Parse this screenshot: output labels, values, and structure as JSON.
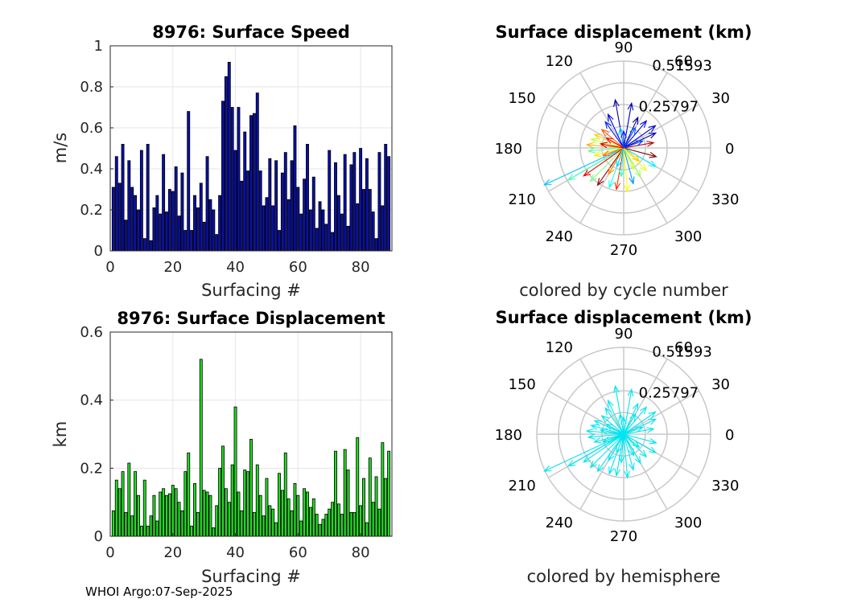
{
  "figure_note": "WHOI Argo:07-Sep-2025",
  "chart_data": [
    {
      "type": "bar",
      "title": "8976: Surface Speed",
      "xlabel": "Surfacing #",
      "ylabel": "m/s",
      "xlim": [
        0,
        90
      ],
      "ylim": [
        0,
        1
      ],
      "xticks": [
        "0",
        "20",
        "40",
        "60",
        "80"
      ],
      "yticks": [
        "0",
        "0.2",
        "0.4",
        "0.6",
        "0.8",
        "1"
      ],
      "bar_color": "#0a10a8",
      "x": [
        1,
        2,
        3,
        4,
        5,
        6,
        7,
        8,
        9,
        10,
        11,
        12,
        13,
        14,
        15,
        16,
        17,
        18,
        19,
        20,
        21,
        22,
        23,
        24,
        25,
        26,
        27,
        28,
        29,
        30,
        31,
        32,
        33,
        34,
        35,
        36,
        37,
        38,
        39,
        40,
        41,
        42,
        43,
        44,
        45,
        46,
        47,
        48,
        49,
        50,
        51,
        52,
        53,
        54,
        55,
        56,
        57,
        58,
        59,
        60,
        61,
        62,
        63,
        64,
        65,
        66,
        67,
        68,
        69,
        70,
        71,
        72,
        73,
        74,
        75,
        76,
        77,
        78,
        79,
        80,
        81,
        82,
        83,
        84,
        85,
        86,
        87,
        88,
        89
      ],
      "values": [
        0.31,
        0.46,
        0.33,
        0.52,
        0.15,
        0.44,
        0.31,
        0.27,
        0.2,
        0.49,
        0.06,
        0.52,
        0.05,
        0.21,
        0.27,
        0.18,
        0.47,
        0.19,
        0.3,
        0.29,
        0.41,
        0.17,
        0.38,
        0.1,
        0.68,
        0.1,
        0.27,
        0.21,
        0.33,
        0.14,
        0.46,
        0.25,
        0.2,
        0.08,
        0.27,
        0.73,
        0.85,
        0.92,
        0.7,
        0.49,
        0.7,
        0.34,
        0.58,
        0.39,
        0.66,
        0.67,
        0.77,
        0.39,
        0.22,
        0.26,
        0.45,
        0.22,
        0.44,
        0.1,
        0.38,
        0.48,
        0.25,
        0.44,
        0.61,
        0.31,
        0.18,
        0.35,
        0.52,
        0.2,
        0.36,
        0.11,
        0.24,
        0.2,
        0.13,
        0.49,
        0.09,
        0.43,
        0.27,
        0.18,
        0.47,
        0.12,
        0.42,
        0.48,
        0.23,
        0.5,
        0.3,
        0.45,
        0.3,
        0.19,
        0.06,
        0.48,
        0.22,
        0.52,
        0.46
      ]
    },
    {
      "type": "bar",
      "title": "8976: Surface Displacement",
      "xlabel": "Surfacing #",
      "ylabel": "km",
      "xlim": [
        0,
        90
      ],
      "ylim": [
        0,
        0.6
      ],
      "xticks": [
        "0",
        "20",
        "40",
        "60",
        "80"
      ],
      "yticks": [
        "0",
        "0.2",
        "0.4",
        "0.6"
      ],
      "bar_color": "#22dd22",
      "x": [
        1,
        2,
        3,
        4,
        5,
        6,
        7,
        8,
        9,
        10,
        11,
        12,
        13,
        14,
        15,
        16,
        17,
        18,
        19,
        20,
        21,
        22,
        23,
        24,
        25,
        26,
        27,
        28,
        29,
        30,
        31,
        32,
        33,
        34,
        35,
        36,
        37,
        38,
        39,
        40,
        41,
        42,
        43,
        44,
        45,
        46,
        47,
        48,
        49,
        50,
        51,
        52,
        53,
        54,
        55,
        56,
        57,
        58,
        59,
        60,
        61,
        62,
        63,
        64,
        65,
        66,
        67,
        68,
        69,
        70,
        71,
        72,
        73,
        74,
        75,
        76,
        77,
        78,
        79,
        80,
        81,
        82,
        83,
        84,
        85,
        86,
        87,
        88,
        89
      ],
      "values": [
        0.075,
        0.165,
        0.14,
        0.19,
        0.07,
        0.215,
        0.06,
        0.19,
        0.12,
        0.03,
        0.165,
        0.03,
        0.06,
        0.12,
        0.045,
        0.13,
        0.14,
        0.12,
        0.125,
        0.15,
        0.14,
        0.1,
        0.075,
        0.19,
        0.245,
        0.03,
        0.155,
        0.07,
        0.52,
        0.135,
        0.13,
        0.12,
        0.025,
        0.09,
        0.2,
        0.265,
        0.14,
        0.1,
        0.21,
        0.38,
        0.13,
        0.075,
        0.195,
        0.19,
        0.285,
        0.07,
        0.21,
        0.12,
        0.06,
        0.17,
        0.09,
        0.08,
        0.04,
        0.185,
        0.135,
        0.245,
        0.11,
        0.075,
        0.155,
        0.12,
        0.045,
        0.14,
        0.13,
        0.085,
        0.11,
        0.065,
        0.035,
        0.05,
        0.065,
        0.08,
        0.1,
        0.25,
        0.095,
        0.065,
        0.255,
        0.195,
        0.07,
        0.07,
        0.29,
        0.09,
        0.17,
        0.04,
        0.23,
        0.1,
        0.175,
        0.08,
        0.275,
        0.17,
        0.25
      ]
    },
    {
      "type": "polar",
      "title": "Surface displacement (km)",
      "subtitle": "colored by cycle number",
      "radial_ticks": [
        "0.25797",
        "0.51593"
      ],
      "radial_max": 0.516,
      "angle_ticks": [
        "0",
        "30",
        "60",
        "90",
        "120",
        "150",
        "180",
        "210",
        "240",
        "270",
        "300",
        "330"
      ],
      "color_scheme": "jet by cycle number",
      "vectors": [
        {
          "angle": 205,
          "r": 0.52,
          "cycle": 29
        },
        {
          "angle": 210,
          "r": 0.38,
          "cycle": 40
        },
        {
          "angle": 215,
          "r": 0.29,
          "cycle": 79
        },
        {
          "angle": 225,
          "r": 0.28,
          "cycle": 45
        },
        {
          "angle": 235,
          "r": 0.27,
          "cycle": 87
        },
        {
          "angle": 250,
          "r": 0.25,
          "cycle": 36
        },
        {
          "angle": 260,
          "r": 0.25,
          "cycle": 74
        },
        {
          "angle": 275,
          "r": 0.26,
          "cycle": 56
        },
        {
          "angle": 285,
          "r": 0.22,
          "cycle": 25
        },
        {
          "angle": 300,
          "r": 0.2,
          "cycle": 47
        },
        {
          "angle": 315,
          "r": 0.19,
          "cycle": 54
        },
        {
          "angle": 330,
          "r": 0.22,
          "cycle": 33
        },
        {
          "angle": 345,
          "r": 0.2,
          "cycle": 89
        },
        {
          "angle": 10,
          "r": 0.18,
          "cycle": 84
        },
        {
          "angle": 25,
          "r": 0.21,
          "cycle": 4
        },
        {
          "angle": 35,
          "r": 0.23,
          "cycle": 7
        },
        {
          "angle": 50,
          "r": 0.21,
          "cycle": 12
        },
        {
          "angle": 65,
          "r": 0.2,
          "cycle": 2
        },
        {
          "angle": 80,
          "r": 0.27,
          "cycle": 6
        },
        {
          "angle": 100,
          "r": 0.29,
          "cycle": 3
        },
        {
          "angle": 115,
          "r": 0.22,
          "cycle": 9
        },
        {
          "angle": 125,
          "r": 0.19,
          "cycle": 15
        },
        {
          "angle": 140,
          "r": 0.17,
          "cycle": 70
        },
        {
          "angle": 155,
          "r": 0.19,
          "cycle": 60
        },
        {
          "angle": 165,
          "r": 0.2,
          "cycle": 51
        },
        {
          "angle": 175,
          "r": 0.22,
          "cycle": 63
        },
        {
          "angle": 185,
          "r": 0.21,
          "cycle": 42
        },
        {
          "angle": 195,
          "r": 0.18,
          "cycle": 58
        },
        {
          "angle": 240,
          "r": 0.18,
          "cycle": 66
        },
        {
          "angle": 265,
          "r": 0.17,
          "cycle": 38
        },
        {
          "angle": 295,
          "r": 0.14,
          "cycle": 52
        },
        {
          "angle": 60,
          "r": 0.14,
          "cycle": 20
        },
        {
          "angle": 100,
          "r": 0.12,
          "cycle": 27
        },
        {
          "angle": 150,
          "r": 0.12,
          "cycle": 78
        },
        {
          "angle": 200,
          "r": 0.13,
          "cycle": 68
        },
        {
          "angle": 250,
          "r": 0.12,
          "cycle": 31
        },
        {
          "angle": 320,
          "r": 0.12,
          "cycle": 61
        },
        {
          "angle": 20,
          "r": 0.12,
          "cycle": 18
        },
        {
          "angle": 170,
          "r": 0.14,
          "cycle": 82
        },
        {
          "angle": 90,
          "r": 0.1,
          "cycle": 14
        }
      ]
    },
    {
      "type": "polar",
      "title": "Surface displacement (km)",
      "subtitle": "colored by hemisphere",
      "radial_ticks": [
        "0.25797",
        "0.51593"
      ],
      "radial_max": 0.516,
      "angle_ticks": [
        "0",
        "30",
        "60",
        "90",
        "120",
        "150",
        "180",
        "210",
        "240",
        "270",
        "300",
        "330"
      ],
      "color_scheme": "single color (cyan)",
      "vector_color": "#00e5f0",
      "vectors_ref": "same vectors as previous panel"
    }
  ]
}
